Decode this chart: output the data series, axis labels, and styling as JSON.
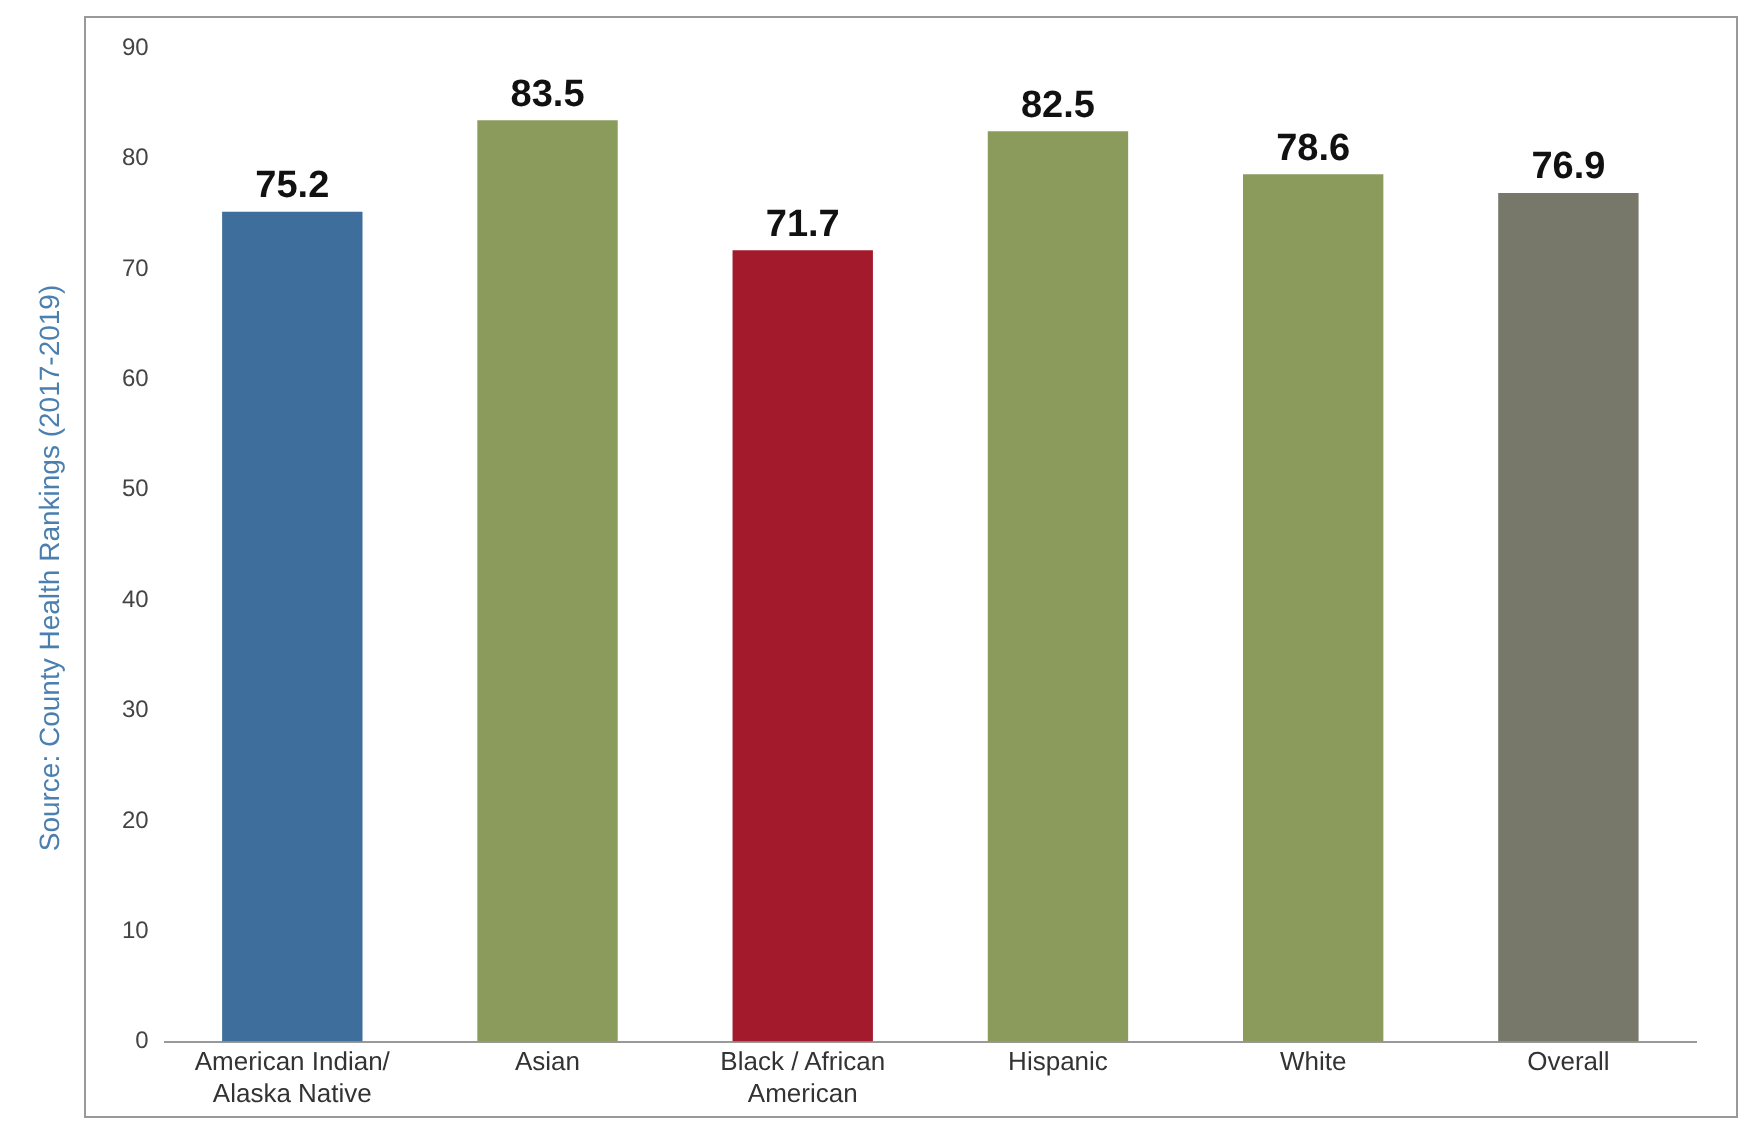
{
  "chart_data": {
    "type": "bar",
    "categories": [
      "American Indian/\nAlaska Native",
      "Asian",
      "Black / African\nAmerican",
      "Hispanic",
      "White",
      "Overall"
    ],
    "values": [
      75.2,
      83.5,
      71.7,
      82.5,
      78.6,
      76.9
    ],
    "colors": [
      "#3e6e9b",
      "#8a9b5c",
      "#a31a2c",
      "#8a9b5c",
      "#8a9b5c",
      "#77786a"
    ],
    "ylim": [
      0,
      90
    ],
    "yticks": [
      0,
      10,
      20,
      30,
      40,
      50,
      60,
      70,
      80,
      90
    ],
    "grid": false,
    "legend": false,
    "data_labels": true,
    "annotations": [
      "Source: County Health Rankings (2017-2019)"
    ]
  }
}
